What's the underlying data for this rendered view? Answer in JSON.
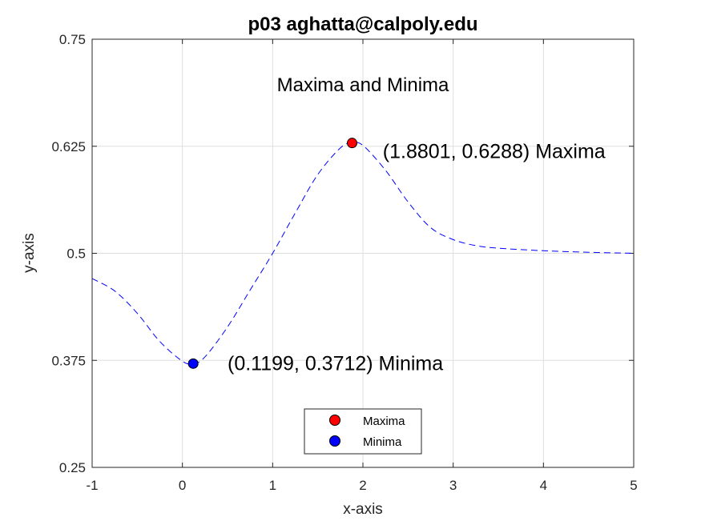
{
  "chart_data": {
    "type": "line",
    "title": "p03 aghatta@calpoly.edu",
    "subtitle": "Maxima and Minima",
    "xlabel": "x-axis",
    "ylabel": "y-axis",
    "xlim": [
      -1,
      5
    ],
    "ylim": [
      0.25,
      0.75
    ],
    "xticks": [
      -1,
      0,
      1,
      2,
      3,
      4,
      5
    ],
    "yticks": [
      0.25,
      0.375,
      0.5,
      0.625,
      0.75
    ],
    "xtick_labels": [
      "-1",
      "0",
      "1",
      "2",
      "3",
      "4",
      "5"
    ],
    "ytick_labels": [
      "0.25",
      "0.375",
      "0.5",
      "0.625",
      "0.75"
    ],
    "grid": true,
    "legend_position": "bottom-center",
    "series": [
      {
        "style": "dashed",
        "color": "#0000ff",
        "x": [
          -1.0,
          -0.75,
          -0.5,
          -0.25,
          0.0,
          0.12,
          0.25,
          0.5,
          0.75,
          1.0,
          1.25,
          1.5,
          1.75,
          1.88,
          2.0,
          2.25,
          2.5,
          2.75,
          3.0,
          3.25,
          3.5,
          4.0,
          4.5,
          5.0
        ],
        "y": [
          0.4705,
          0.456,
          0.43,
          0.397,
          0.374,
          0.3712,
          0.379,
          0.414,
          0.457,
          0.5,
          0.547,
          0.592,
          0.623,
          0.6288,
          0.626,
          0.597,
          0.56,
          0.53,
          0.516,
          0.509,
          0.506,
          0.503,
          0.5012,
          0.5
        ]
      },
      {
        "name": "Maxima",
        "style": "marker",
        "color": "#ff0000",
        "x": [
          1.8801
        ],
        "y": [
          0.6288
        ]
      },
      {
        "name": "Minima",
        "style": "marker",
        "color": "#0000ff",
        "x": [
          0.1199
        ],
        "y": [
          0.3712
        ]
      }
    ],
    "annotations": [
      {
        "text": "(1.8801, 0.6288) Maxima",
        "x": 2.22,
        "y": 0.6188
      },
      {
        "text": "(0.1199, 0.3712) Minima",
        "x": 0.5,
        "y": 0.3712
      }
    ]
  }
}
